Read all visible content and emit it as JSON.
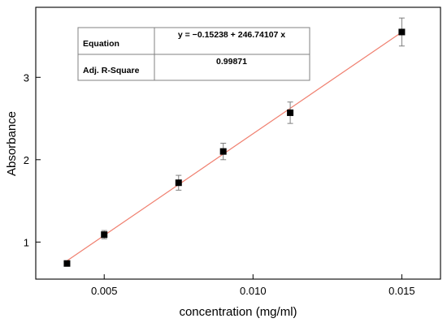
{
  "chart_data": {
    "type": "scatter",
    "xlabel": "concentration (mg/ml)",
    "ylabel": "Absorbance",
    "xlim": [
      0.0027,
      0.0163
    ],
    "ylim": [
      0.55,
      3.85
    ],
    "x_ticks": [
      0.005,
      0.01,
      0.015
    ],
    "x_tick_labels": [
      "0.005",
      "0.010",
      "0.015"
    ],
    "y_ticks": [
      1,
      2,
      3
    ],
    "y_tick_labels": [
      "1",
      "2",
      "3"
    ],
    "series": [
      {
        "marker": "square",
        "color": "#000000",
        "x": [
          0.00375,
          0.005,
          0.0075,
          0.009,
          0.01125,
          0.015
        ],
        "y": [
          0.74,
          1.09,
          1.72,
          2.1,
          2.57,
          3.55
        ],
        "error": [
          0.02,
          0.05,
          0.09,
          0.1,
          0.13,
          0.17
        ]
      }
    ],
    "fit": {
      "slope": 246.74107,
      "intercept": -0.15238,
      "x_range": [
        0.00375,
        0.015
      ],
      "color": "#f08070"
    },
    "fit_table": {
      "rows": [
        {
          "label": "Equation",
          "value": "y = −0.15238 + 246.74107  x"
        },
        {
          "label": "Adj. R-Square",
          "value": "0.99871"
        }
      ]
    }
  }
}
